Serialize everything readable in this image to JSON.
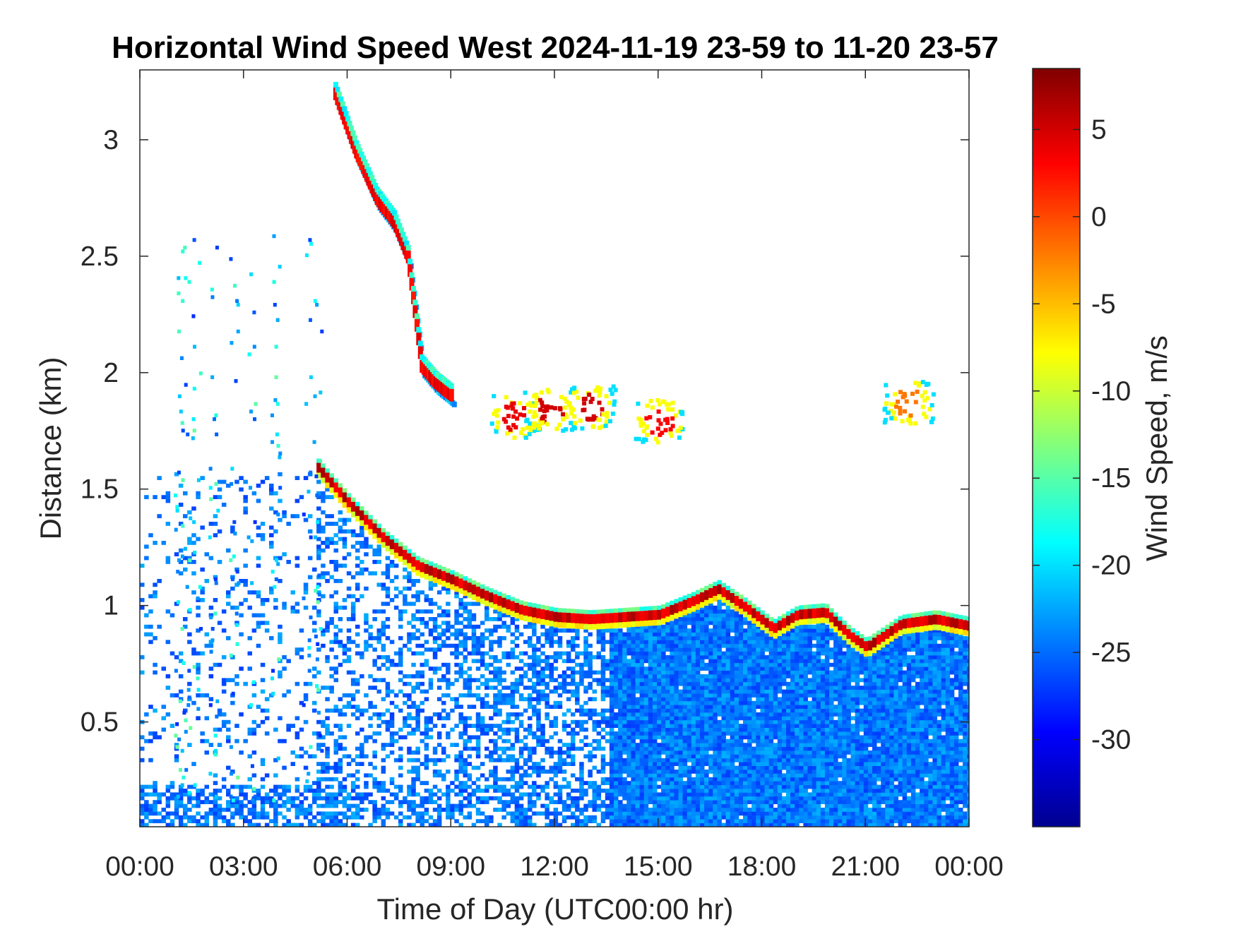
{
  "chart_data": {
    "type": "heatmap",
    "title": "Horizontal Wind Speed West 2024-11-19 23-59 to 11-20 23-57",
    "xlabel": "Time of Day (UTC00:00 hr)",
    "ylabel": "Distance (km)",
    "x_ticks": [
      "00:00",
      "03:00",
      "06:00",
      "09:00",
      "12:00",
      "15:00",
      "18:00",
      "21:00",
      "00:00"
    ],
    "x_tick_hours": [
      0,
      3,
      6,
      9,
      12,
      15,
      18,
      21,
      24
    ],
    "xlim_hours": [
      0,
      24
    ],
    "y_ticks": [
      "0.5",
      "1",
      "1.5",
      "2",
      "2.5",
      "3"
    ],
    "y_tick_values": [
      0.5,
      1,
      1.5,
      2,
      2.5,
      3
    ],
    "ylim": [
      0.05,
      3.3
    ],
    "colorbar": {
      "label": "Wind Speed, m/s",
      "ticks": [
        "5",
        "0",
        "-5",
        "-10",
        "-15",
        "-20",
        "-25",
        "-30"
      ],
      "tick_values": [
        5,
        0,
        -5,
        -10,
        -15,
        -20,
        -25,
        -30
      ],
      "range": [
        -35,
        8.5
      ],
      "colormap": "jet"
    },
    "background_field": {
      "description": "",
      "value_range": [
        -27,
        -22
      ]
    },
    "features": [
      {
        "name": "",
        "hour_start": 8.0,
        "hour_end": 24.0,
        "note": ""
      }
    ],
    "boundary_layer_top": {
      "hours": [
        5.0,
        6.0,
        7.0,
        8.0,
        9.0,
        10.0,
        11.0,
        12.0,
        13.0,
        14.0,
        15.0,
        16.0,
        16.7,
        17.5,
        18.3,
        19.0,
        19.8,
        20.5,
        21.0,
        22.0,
        23.0,
        24.0
      ],
      "distance_km": [
        1.62,
        1.45,
        1.3,
        1.18,
        1.12,
        1.05,
        0.99,
        0.96,
        0.95,
        0.96,
        0.97,
        1.03,
        1.08,
        1.0,
        0.91,
        0.97,
        0.98,
        0.88,
        0.83,
        0.93,
        0.95,
        0.92
      ],
      "value_mps": 3
    },
    "upper_layer": {
      "hours": [
        5.6,
        6.2,
        6.8,
        7.3,
        7.7,
        8.1,
        8.5,
        9.0
      ],
      "distance_km": [
        3.2,
        2.95,
        2.75,
        2.65,
        2.5,
        2.03,
        1.96,
        1.9
      ],
      "value_mps": 2
    },
    "cloud_patches": [
      {
        "hour": 10.8,
        "distance_km": 1.82,
        "value_mps": 4
      },
      {
        "hour": 11.8,
        "distance_km": 1.85,
        "value_mps": 5
      },
      {
        "hour": 13.0,
        "distance_km": 1.86,
        "value_mps": 5
      },
      {
        "hour": 15.0,
        "distance_km": 1.8,
        "value_mps": 3
      },
      {
        "hour": 22.2,
        "distance_km": 1.88,
        "value_mps": -2
      }
    ]
  }
}
